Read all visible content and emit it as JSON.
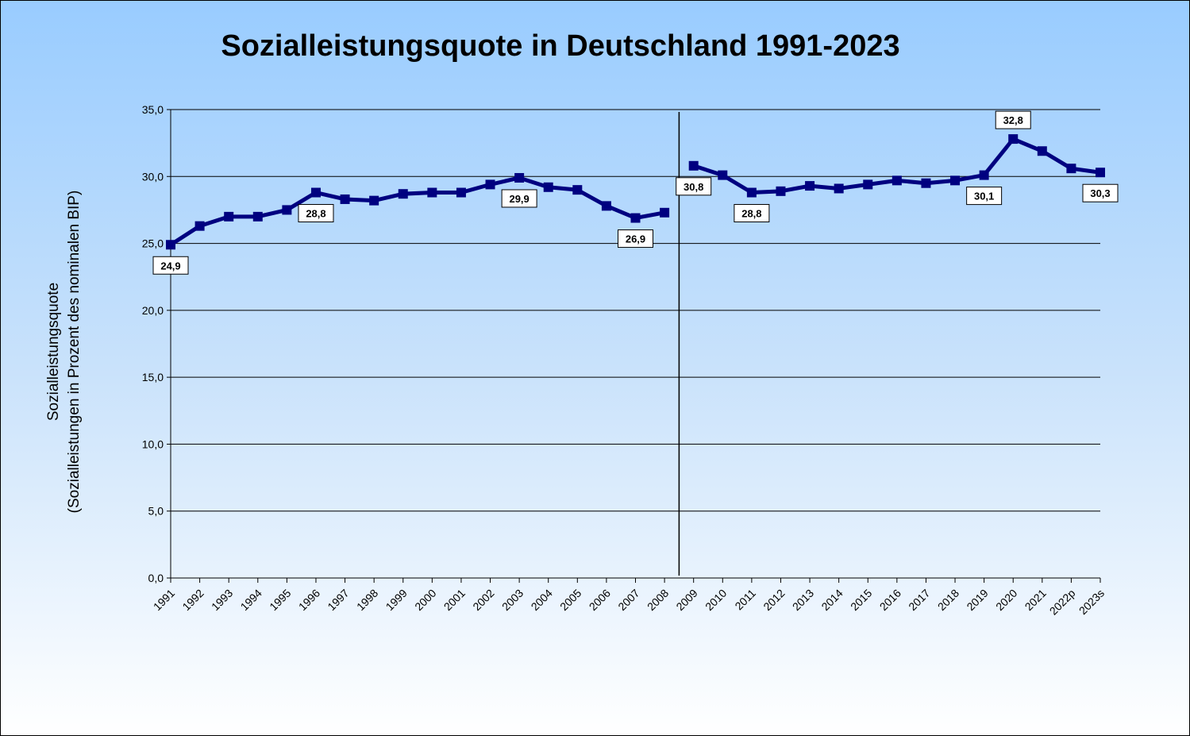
{
  "chart_data": {
    "type": "line",
    "title": "Sozialleistungsquote in Deutschland 1991-2023",
    "ylabel_lines": [
      "Sozialleistungsquote",
      "(Sozialleistungen  in  Prozent des nominalen  BIP)"
    ],
    "xlabel": "",
    "ylim": [
      0,
      35
    ],
    "y_ticks": [
      "0,0",
      "5,0",
      "10,0",
      "15,0",
      "20,0",
      "25,0",
      "30,0",
      "35,0"
    ],
    "grid": true,
    "categories": [
      "1991",
      "1992",
      "1993",
      "1994",
      "1995",
      "1996",
      "1997",
      "1998",
      "1999",
      "2000",
      "2001",
      "2002",
      "2003",
      "2004",
      "2005",
      "2006",
      "2007",
      "2008",
      "2009",
      "2010",
      "2011",
      "2012",
      "2013",
      "2014",
      "2015",
      "2016",
      "2017",
      "2018",
      "2019",
      "2020",
      "2021",
      "2022p",
      "2023s"
    ],
    "series": [
      {
        "color": "#000080",
        "marker": "square",
        "values": [
          24.9,
          26.3,
          27.0,
          27.0,
          27.5,
          28.8,
          28.3,
          28.2,
          28.7,
          28.8,
          28.8,
          29.4,
          29.9,
          29.2,
          29.0,
          27.8,
          26.9,
          27.3,
          30.8,
          30.1,
          28.8,
          28.9,
          29.3,
          29.1,
          29.4,
          29.7,
          29.5,
          29.7,
          30.1,
          32.8,
          31.9,
          30.6,
          30.3
        ],
        "break_after_index": 17
      }
    ],
    "data_labels": [
      {
        "index": 0,
        "text": "24,9"
      },
      {
        "index": 5,
        "text": "28,8"
      },
      {
        "index": 12,
        "text": "29,9"
      },
      {
        "index": 16,
        "text": "26,9"
      },
      {
        "index": 18,
        "text": "30,8"
      },
      {
        "index": 20,
        "text": "28,8"
      },
      {
        "index": 28,
        "text": "30,1"
      },
      {
        "index": 29,
        "text": "32,8"
      },
      {
        "index": 32,
        "text": "30,3"
      }
    ],
    "reference_line": {
      "between": [
        "2008",
        "2009"
      ],
      "orientation": "vertical"
    },
    "colors": {
      "line": "#000080",
      "grid": "#000000",
      "background_top": "#99ccff",
      "background_bottom": "#ffffff"
    }
  }
}
